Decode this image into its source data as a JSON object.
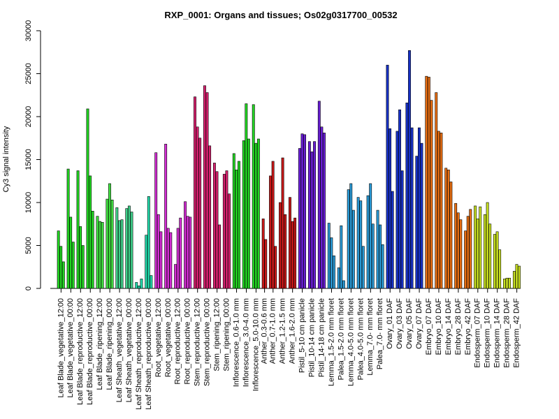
{
  "chart_data": {
    "type": "bar",
    "title": "RXP_0001: Organs and tissues; Os02g0317700_00532",
    "ylabel": "Cy3 signal intensity",
    "xlabel": "",
    "ylim": [
      0,
      30000
    ],
    "yticks": [
      0,
      5000,
      10000,
      15000,
      20000,
      25000,
      30000
    ],
    "grid": false,
    "groups": [
      {
        "color": "#22d622",
        "values": [
          6700,
          4900,
          3100
        ]
      },
      {
        "color": "#22d622",
        "values": [
          13900,
          8300,
          5400
        ]
      },
      {
        "color": "#22d622",
        "values": [
          13700,
          7200,
          5000
        ]
      },
      {
        "color": "#22d622",
        "values": [
          20900,
          13100,
          9000
        ]
      },
      {
        "color": "#42e042",
        "values": [
          8400,
          7800,
          7700
        ]
      },
      {
        "color": "#42e042",
        "values": [
          10400,
          12200,
          10300
        ]
      },
      {
        "color": "#3fd08a",
        "values": [
          9400,
          7900,
          8000
        ]
      },
      {
        "color": "#3fd08a",
        "values": [
          9300,
          9600,
          8900
        ]
      },
      {
        "color": "#22d9aa",
        "values": [
          700,
          300,
          1100
        ]
      },
      {
        "color": "#22d9aa",
        "values": [
          6200,
          10700,
          1500
        ]
      },
      {
        "color": "#d42ed4",
        "values": [
          15800,
          8600,
          6600
        ]
      },
      {
        "color": "#d42ed4",
        "values": [
          16800,
          7000,
          6500
        ]
      },
      {
        "color": "#d42ed4",
        "values": [
          2800,
          7000,
          8200
        ]
      },
      {
        "color": "#d42ed4",
        "values": [
          10100,
          8400,
          8300
        ]
      },
      {
        "color": "#d6216e",
        "values": [
          22300,
          18800,
          17500
        ]
      },
      {
        "color": "#d6216e",
        "values": [
          23600,
          22800,
          16600
        ]
      },
      {
        "color": "#d6216e",
        "values": [
          14600,
          13600,
          7400
        ]
      },
      {
        "color": "#d6216e",
        "values": [
          13300,
          13700,
          11000
        ]
      },
      {
        "color": "#22d622",
        "values": [
          15700,
          13800,
          14800
        ]
      },
      {
        "color": "#22d622",
        "values": [
          17200,
          21500,
          17400
        ]
      },
      {
        "color": "#22d622",
        "values": [
          21400,
          16900,
          17400
        ]
      },
      {
        "color": "#c81818",
        "values": [
          8100,
          5700
        ]
      },
      {
        "color": "#c81818",
        "values": [
          13100,
          14800,
          4900
        ]
      },
      {
        "color": "#c81818",
        "values": [
          10000,
          15200,
          8600
        ]
      },
      {
        "color": "#c81818",
        "values": [
          10600,
          7800,
          8200
        ]
      },
      {
        "color": "#6a1fd6",
        "values": [
          16300,
          18000,
          17900
        ]
      },
      {
        "color": "#6a1fd6",
        "values": [
          17100,
          15900,
          17100
        ]
      },
      {
        "color": "#6a1fd6",
        "values": [
          21800,
          18800,
          18100
        ]
      },
      {
        "color": "#2a9ad6",
        "values": [
          7600,
          5900,
          3800
        ]
      },
      {
        "color": "#2a9ad6",
        "values": [
          2400,
          7300,
          900
        ]
      },
      {
        "color": "#2a9ad6",
        "values": [
          11500,
          12200,
          9100
        ]
      },
      {
        "color": "#2a9ad6",
        "values": [
          10600,
          10200,
          4900
        ]
      },
      {
        "color": "#2a9ad6",
        "values": [
          10800,
          12200,
          7500
        ]
      },
      {
        "color": "#2a9ad6",
        "values": [
          9100,
          7400,
          5100
        ]
      },
      {
        "color": "#1832c8",
        "values": [
          26000,
          18600,
          11300
        ]
      },
      {
        "color": "#1832c8",
        "values": [
          18300,
          20800,
          13700
        ]
      },
      {
        "color": "#1832c8",
        "values": [
          21600,
          27700,
          18700
        ]
      },
      {
        "color": "#1832c8",
        "values": [
          15400,
          18700,
          16900
        ]
      },
      {
        "color": "#e86e12",
        "values": [
          24700,
          24600,
          21900
        ]
      },
      {
        "color": "#e86e12",
        "values": [
          22800,
          18300,
          18100
        ]
      },
      {
        "color": "#e86e12",
        "values": [
          14000,
          13800,
          12400
        ]
      },
      {
        "color": "#e86e12",
        "values": [
          9900,
          8800,
          8000
        ]
      },
      {
        "color": "#e86e12",
        "values": [
          6700,
          8400,
          9200
        ]
      },
      {
        "color": "#c8e022",
        "values": [
          9600,
          8100,
          9500
        ]
      },
      {
        "color": "#c8e022",
        "values": [
          8600,
          10000,
          7500
        ]
      },
      {
        "color": "#c8e022",
        "values": [
          6300,
          6600,
          4500
        ]
      },
      {
        "color": "#c8e022",
        "values": [
          1100,
          1200,
          1200
        ]
      },
      {
        "color": "#c8e022",
        "values": [
          2000,
          2800,
          2600
        ]
      }
    ],
    "categories": [
      {
        "label": "Leaf Blade_vegetative_12:00",
        "group": 0
      },
      {
        "label": "Leaf Blade_vegetative_00:00",
        "group": 1
      },
      {
        "label": "Leaf Blade_reproductive_12:00",
        "group": 2
      },
      {
        "label": "Leaf Blade_reproductive_00:00",
        "group": 3
      },
      {
        "label": "Leaf Blade_ripening_12:00",
        "group": 4
      },
      {
        "label": "Leaf Blade_ripening_00:00",
        "group": 5
      },
      {
        "label": "Leaf Sheath_vegetative_12:00",
        "group": 6
      },
      {
        "label": "Leaf Sheath_vegetative_00:00",
        "group": 7
      },
      {
        "label": "Leaf Sheath_reproductive_12:00",
        "group": 8
      },
      {
        "label": "Leaf Sheath_reproductive_00:00",
        "group": 9
      },
      {
        "label": "Root_vegetative_12:00",
        "group": 10
      },
      {
        "label": "Root_vegetative_00:00",
        "group": 11
      },
      {
        "label": "Root_reproductive_12:00",
        "group": 12
      },
      {
        "label": "Root_reproductive_00:00",
        "group": 13
      },
      {
        "label": "Stem_reproductive_12:00",
        "group": 14
      },
      {
        "label": "Stem_reproductive_00:00",
        "group": 15
      },
      {
        "label": "Stem_ripening_12:00",
        "group": 16
      },
      {
        "label": "Stem_ripening_00:00",
        "group": 17
      },
      {
        "label": "Inflorescence_0.6-1.0 mm",
        "group": 18
      },
      {
        "label": "Inflorescence_3.0-4.0 mm",
        "group": 19
      },
      {
        "label": "Inflorescence_5.0-10.0 mm",
        "group": 20
      },
      {
        "label": "Anther_0.3-0.6 mm",
        "group": 21
      },
      {
        "label": "Anther_0.7-1.0 mm",
        "group": 22
      },
      {
        "label": "Anther_1.2-1.5 mm",
        "group": 23
      },
      {
        "label": "Anther_1.6-2.0 mm",
        "group": 24
      },
      {
        "label": "Pistil_5-10 cm panicle",
        "group": 25
      },
      {
        "label": "Pistil_10-14 cm panicle",
        "group": 26
      },
      {
        "label": "Pistil_14-18 cm panicle",
        "group": 27
      },
      {
        "label": "Lemma_1.5-2.0 mm floret",
        "group": 28
      },
      {
        "label": "Palea_1.5-2.0 mm floret",
        "group": 29
      },
      {
        "label": "Lemma_4.0-5.0 mm floret",
        "group": 30
      },
      {
        "label": "Palea_4.0-5.0 mm floret",
        "group": 31
      },
      {
        "label": "Lemma_7.0- mm floret",
        "group": 32
      },
      {
        "label": "Palea_7.0- mm floret",
        "group": 33
      },
      {
        "label": "Ovary_01 DAF",
        "group": 34
      },
      {
        "label": "Ovary_03 DAF",
        "group": 35
      },
      {
        "label": "Ovary_05 DAF",
        "group": 36
      },
      {
        "label": "Ovary_07 DAF",
        "group": 37
      },
      {
        "label": "Embryo_07 DAF",
        "group": 38
      },
      {
        "label": "Embryo_10 DAF",
        "group": 39
      },
      {
        "label": "Embryo_14 DAF",
        "group": 40
      },
      {
        "label": "Embryo_28 DAF",
        "group": 41
      },
      {
        "label": "Embryo_42 DAF",
        "group": 42
      },
      {
        "label": "Endosperm_07 DAF",
        "group": 43
      },
      {
        "label": "Endosperm_10 DAF",
        "group": 44
      },
      {
        "label": "Endosperm_14 DAF",
        "group": 45
      },
      {
        "label": "Endosperm_28 DAF",
        "group": 46
      },
      {
        "label": "Endosperm_42 DAF",
        "group": 47
      }
    ]
  }
}
